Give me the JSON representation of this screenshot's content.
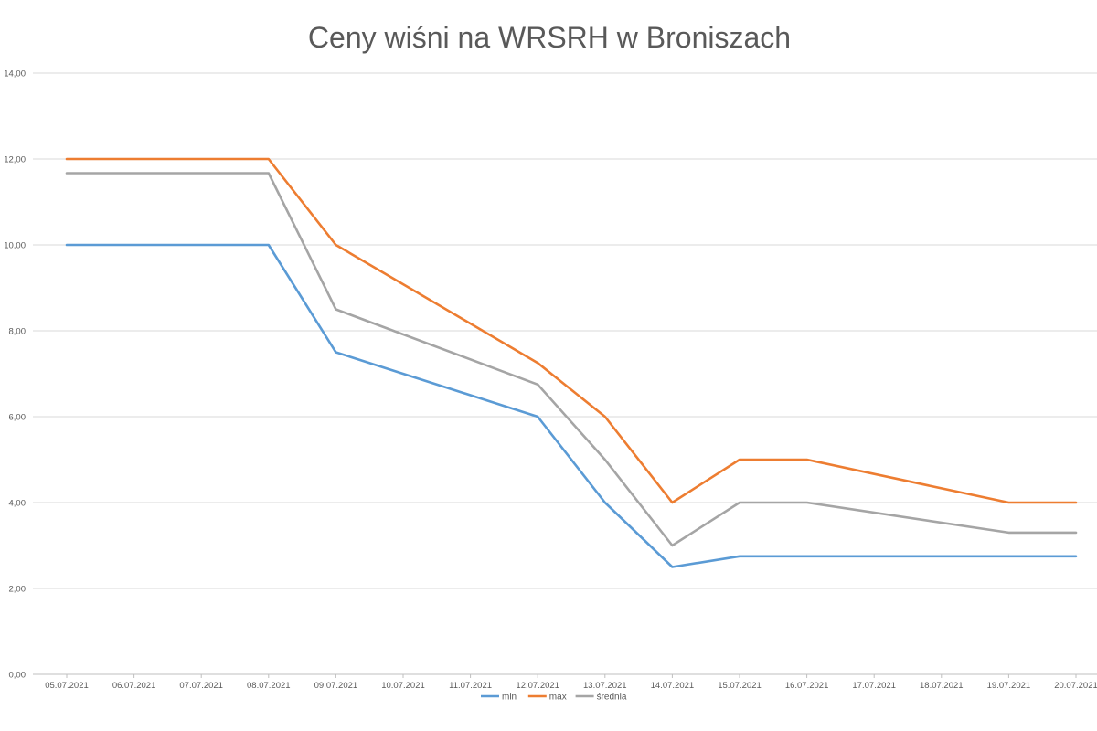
{
  "chart_data": {
    "type": "line",
    "title": "Ceny wiśni na WRSRH w Broniszach",
    "xlabel": "",
    "ylabel": "",
    "ylim": [
      0,
      14
    ],
    "y_ticks": [
      "0,00",
      "2,00",
      "4,00",
      "6,00",
      "8,00",
      "10,00",
      "12,00",
      "14,00"
    ],
    "grid": true,
    "legend_position": "bottom",
    "categories": [
      "05.07.2021",
      "06.07.2021",
      "07.07.2021",
      "08.07.2021",
      "09.07.2021",
      "10.07.2021",
      "11.07.2021",
      "12.07.2021",
      "13.07.2021",
      "14.07.2021",
      "15.07.2021",
      "16.07.2021",
      "17.07.2021",
      "18.07.2021",
      "19.07.2021",
      "20.07.2021"
    ],
    "series": [
      {
        "name": "min",
        "color": "#5b9bd5",
        "values": [
          10,
          null,
          null,
          10,
          7.5,
          null,
          null,
          6,
          4,
          2.5,
          2.75,
          2.75,
          null,
          null,
          2.75,
          2.75
        ]
      },
      {
        "name": "max",
        "color": "#ed7d31",
        "values": [
          12,
          null,
          null,
          12,
          10,
          null,
          null,
          7.25,
          6,
          4,
          5,
          5,
          null,
          null,
          4,
          4
        ]
      },
      {
        "name": "średnia",
        "color": "#a5a5a5",
        "values": [
          11.67,
          null,
          null,
          11.67,
          8.5,
          null,
          null,
          6.75,
          5,
          3,
          4,
          4,
          null,
          null,
          3.3,
          3.3
        ]
      }
    ]
  }
}
